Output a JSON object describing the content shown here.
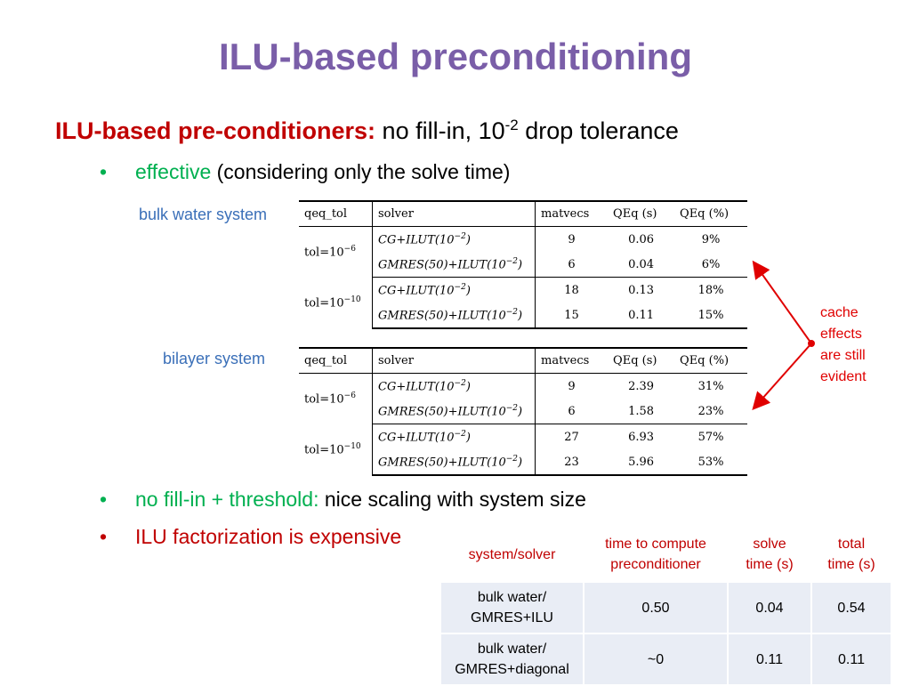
{
  "slide": {
    "title": "ILU-based preconditioning",
    "heading_bold": "ILU-based pre-conditioners:",
    "heading_rest": "no fill-in, 10",
    "heading_exp": "-2",
    "heading_tail": "drop tolerance",
    "bullets": [
      {
        "dot": "•",
        "highlight": "effective",
        "rest": "(considering only the solve time)"
      },
      {
        "dot": "•",
        "highlight": "no fill-in + threshold:",
        "rest": "nice scaling with system size"
      },
      {
        "dot": "•",
        "highlight": "ILU factorization is expensive",
        "rest": ""
      }
    ],
    "labels": {
      "bulk": "bulk water system",
      "bilayer": "bilayer system"
    },
    "annotation": [
      "cache",
      "effects",
      "are still",
      "evident"
    ]
  },
  "paper_tables": [
    {
      "headers": [
        "qeq_tol",
        "solver",
        "matvecs",
        "QEq (s)",
        "QEq (%)"
      ],
      "groups": [
        {
          "tol": "tol=10",
          "exp": "−6",
          "rows": [
            {
              "solver": "CG+ILUT(10",
              "sexp": "−2",
              "close": ")",
              "matvecs": "9",
              "qeq_s": "0.06",
              "qeq_pct": "9%"
            },
            {
              "solver": "GMRES(50)+ILUT(10",
              "sexp": "−2",
              "close": ")",
              "matvecs": "6",
              "qeq_s": "0.04",
              "qeq_pct": "6%"
            }
          ]
        },
        {
          "tol": "tol=10",
          "exp": "−10",
          "rows": [
            {
              "solver": "CG+ILUT(10",
              "sexp": "−2",
              "close": ")",
              "matvecs": "18",
              "qeq_s": "0.13",
              "qeq_pct": "18%"
            },
            {
              "solver": "GMRES(50)+ILUT(10",
              "sexp": "−2",
              "close": ")",
              "matvecs": "15",
              "qeq_s": "0.11",
              "qeq_pct": "15%"
            }
          ]
        }
      ]
    },
    {
      "headers": [
        "qeq_tol",
        "solver",
        "matvecs",
        "QEq (s)",
        "QEq (%)"
      ],
      "groups": [
        {
          "tol": "tol=10",
          "exp": "−6",
          "rows": [
            {
              "solver": "CG+ILUT(10",
              "sexp": "−2",
              "close": ")",
              "matvecs": "9",
              "qeq_s": "2.39",
              "qeq_pct": "31%"
            },
            {
              "solver": "GMRES(50)+ILUT(10",
              "sexp": "−2",
              "close": ")",
              "matvecs": "6",
              "qeq_s": "1.58",
              "qeq_pct": "23%"
            }
          ]
        },
        {
          "tol": "tol=10",
          "exp": "−10",
          "rows": [
            {
              "solver": "CG+ILUT(10",
              "sexp": "−2",
              "close": ")",
              "matvecs": "27",
              "qeq_s": "6.93",
              "qeq_pct": "57%"
            },
            {
              "solver": "GMRES(50)+ILUT(10",
              "sexp": "−2",
              "close": ")",
              "matvecs": "23",
              "qeq_s": "5.96",
              "qeq_pct": "53%"
            }
          ]
        }
      ]
    }
  ],
  "cost_table": {
    "headers": [
      [
        "system/solver"
      ],
      [
        "time to compute",
        "preconditioner"
      ],
      [
        "solve",
        "time (s)"
      ],
      [
        "total",
        "time (s)"
      ]
    ],
    "rows": [
      {
        "system": [
          "bulk water/",
          "GMRES+ILU"
        ],
        "precond": "0.50",
        "solve": "0.04",
        "total": "0.54"
      },
      {
        "system": [
          "bulk water/",
          "GMRES+diagonal"
        ],
        "precond": "~0",
        "solve": "0.11",
        "total": "0.11"
      }
    ]
  },
  "colors": {
    "title": "#7a5ea8",
    "accent_red": "#c00000",
    "accent_green": "#00b050",
    "label_blue": "#3a6fb8",
    "arrow_red": "#e00000",
    "table_fill": "#e9edf5"
  }
}
